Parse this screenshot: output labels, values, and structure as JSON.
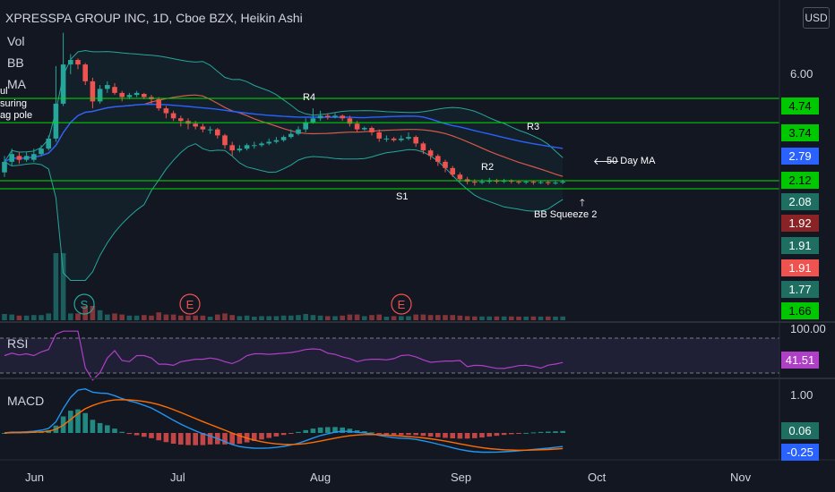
{
  "header": {
    "title": "XPRESSPA GROUP INC, 1D, Cboe BZX, Heikin Ashi",
    "indicators": [
      "Vol",
      "BB",
      "MA"
    ],
    "currency_button": "USD",
    "left_note_lines": [
      "ul",
      "suring",
      "ag pole"
    ]
  },
  "colors": {
    "background": "#131722",
    "bull": "#26a69a",
    "bear": "#ef5350",
    "bb_band": "#26a69a",
    "ma50": "#2962ff",
    "ma20": "#d65a4a",
    "hlines": "#00e000",
    "rsi": "#b03fc7",
    "macd": "#2196f3",
    "signal": "#ff6d00"
  },
  "price_axis": {
    "labels": [
      "6.00"
    ],
    "tags": [
      {
        "text": "4.74",
        "color": "#00c800",
        "text_color": "#000000"
      },
      {
        "text": "3.74",
        "color": "#00c800",
        "text_color": "#000000"
      },
      {
        "text": "2.79",
        "color": "#2962ff",
        "text_color": "#ffffff"
      },
      {
        "text": "2.12",
        "color": "#00c800",
        "text_color": "#000000"
      },
      {
        "text": "2.08",
        "color": "#1e6e62",
        "text_color": "#ffffff"
      },
      {
        "text": "1.92",
        "color": "#8a2325",
        "text_color": "#ffffff"
      },
      {
        "text": "1.91",
        "color": "#1e6e62",
        "text_color": "#ffffff"
      },
      {
        "text": "1.91",
        "color": "#ef5350",
        "text_color": "#ffffff"
      },
      {
        "text": "1.77",
        "color": "#1e6e62",
        "text_color": "#ffffff"
      },
      {
        "text": "1.66",
        "color": "#00c800",
        "text_color": "#000000"
      }
    ]
  },
  "annotations": {
    "r4": "R4",
    "r3": "R3",
    "r2": "R2",
    "s1": "S1",
    "ma50": "50 Day MA",
    "squeeze": "BB Squeeze 2"
  },
  "events": [
    "S",
    "E",
    "E"
  ],
  "rsi": {
    "label": "RSI",
    "top": "100.00",
    "value": "41.51"
  },
  "macd": {
    "label": "MACD",
    "top": "1.00",
    "value": "0.06",
    "signal_value": "-0.25"
  },
  "time_axis": [
    "Jun",
    "Jul",
    "Aug",
    "Sep",
    "Oct",
    "Nov"
  ],
  "chart_data": {
    "type": "candlestick",
    "title": "XPRESSPA GROUP INC, 1D, Cboe BZX, Heikin Ashi",
    "horizontal_levels": [
      4.74,
      3.74,
      2.12,
      1.66
    ],
    "price_scale": "log",
    "candles": [
      {
        "o": 2.3,
        "c": 2.55,
        "h": 2.7,
        "l": 2.2
      },
      {
        "o": 2.55,
        "c": 2.75,
        "h": 2.9,
        "l": 2.45
      },
      {
        "o": 2.7,
        "c": 2.6,
        "h": 2.8,
        "l": 2.5
      },
      {
        "o": 2.6,
        "c": 2.7,
        "h": 2.8,
        "l": 2.55
      },
      {
        "o": 2.6,
        "c": 2.75,
        "h": 2.9,
        "l": 2.55
      },
      {
        "o": 2.75,
        "c": 2.9,
        "h": 3.0,
        "l": 2.7
      },
      {
        "o": 2.9,
        "c": 3.2,
        "h": 3.3,
        "l": 2.85
      },
      {
        "o": 3.2,
        "c": 4.5,
        "h": 6.5,
        "l": 3.1
      },
      {
        "o": 4.5,
        "c": 6.6,
        "h": 9.0,
        "l": 4.4
      },
      {
        "o": 6.6,
        "c": 6.9,
        "h": 7.3,
        "l": 6.0
      },
      {
        "o": 6.9,
        "c": 6.6,
        "h": 7.0,
        "l": 6.3
      },
      {
        "o": 6.6,
        "c": 5.6,
        "h": 6.7,
        "l": 5.4
      },
      {
        "o": 5.6,
        "c": 4.6,
        "h": 5.8,
        "l": 4.3
      },
      {
        "o": 4.6,
        "c": 5.2,
        "h": 5.4,
        "l": 4.5
      },
      {
        "o": 5.2,
        "c": 5.4,
        "h": 5.6,
        "l": 5.0
      },
      {
        "o": 5.3,
        "c": 5.0,
        "h": 5.5,
        "l": 4.9
      },
      {
        "o": 5.0,
        "c": 4.8,
        "h": 5.1,
        "l": 4.6
      },
      {
        "o": 4.8,
        "c": 4.9,
        "h": 5.0,
        "l": 4.7
      },
      {
        "o": 4.9,
        "c": 5.0,
        "h": 5.1,
        "l": 4.8
      },
      {
        "o": 4.95,
        "c": 4.8,
        "h": 5.0,
        "l": 4.7
      },
      {
        "o": 4.8,
        "c": 4.7,
        "h": 4.9,
        "l": 4.5
      },
      {
        "o": 4.7,
        "c": 4.3,
        "h": 4.8,
        "l": 4.2
      },
      {
        "o": 4.3,
        "c": 4.1,
        "h": 4.4,
        "l": 3.9
      },
      {
        "o": 4.1,
        "c": 3.9,
        "h": 4.2,
        "l": 3.8
      },
      {
        "o": 3.9,
        "c": 3.8,
        "h": 4.0,
        "l": 3.6
      },
      {
        "o": 3.8,
        "c": 3.7,
        "h": 3.9,
        "l": 3.5
      },
      {
        "o": 3.7,
        "c": 3.6,
        "h": 3.8,
        "l": 3.5
      },
      {
        "o": 3.6,
        "c": 3.5,
        "h": 3.7,
        "l": 3.4
      },
      {
        "o": 3.5,
        "c": 3.5,
        "h": 3.6,
        "l": 3.35
      },
      {
        "o": 3.5,
        "c": 3.3,
        "h": 3.55,
        "l": 3.2
      },
      {
        "o": 3.3,
        "c": 3.0,
        "h": 3.35,
        "l": 2.9
      },
      {
        "o": 3.0,
        "c": 2.85,
        "h": 3.1,
        "l": 2.7
      },
      {
        "o": 2.85,
        "c": 2.9,
        "h": 3.0,
        "l": 2.8
      },
      {
        "o": 2.9,
        "c": 3.0,
        "h": 3.05,
        "l": 2.85
      },
      {
        "o": 3.0,
        "c": 3.0,
        "h": 3.1,
        "l": 2.9
      },
      {
        "o": 3.0,
        "c": 3.05,
        "h": 3.1,
        "l": 2.95
      },
      {
        "o": 3.05,
        "c": 3.1,
        "h": 3.2,
        "l": 3.0
      },
      {
        "o": 3.1,
        "c": 3.15,
        "h": 3.25,
        "l": 3.05
      },
      {
        "o": 3.15,
        "c": 3.25,
        "h": 3.3,
        "l": 3.1
      },
      {
        "o": 3.25,
        "c": 3.35,
        "h": 3.5,
        "l": 3.2
      },
      {
        "o": 3.35,
        "c": 3.5,
        "h": 3.6,
        "l": 3.3
      },
      {
        "o": 3.5,
        "c": 3.75,
        "h": 3.9,
        "l": 3.4
      },
      {
        "o": 3.75,
        "c": 3.9,
        "h": 4.3,
        "l": 3.7
      },
      {
        "o": 3.9,
        "c": 4.0,
        "h": 4.2,
        "l": 3.8
      },
      {
        "o": 4.0,
        "c": 3.95,
        "h": 4.1,
        "l": 3.85
      },
      {
        "o": 3.95,
        "c": 4.0,
        "h": 4.1,
        "l": 3.9
      },
      {
        "o": 4.0,
        "c": 3.9,
        "h": 4.05,
        "l": 3.8
      },
      {
        "o": 3.9,
        "c": 3.7,
        "h": 4.0,
        "l": 3.6
      },
      {
        "o": 3.7,
        "c": 3.5,
        "h": 3.8,
        "l": 3.4
      },
      {
        "o": 3.5,
        "c": 3.55,
        "h": 3.6,
        "l": 3.45
      },
      {
        "o": 3.55,
        "c": 3.4,
        "h": 3.6,
        "l": 3.3
      },
      {
        "o": 3.4,
        "c": 3.2,
        "h": 3.5,
        "l": 3.1
      },
      {
        "o": 3.2,
        "c": 3.2,
        "h": 3.3,
        "l": 3.1
      },
      {
        "o": 3.2,
        "c": 3.15,
        "h": 3.25,
        "l": 3.1
      },
      {
        "o": 3.15,
        "c": 3.2,
        "h": 3.3,
        "l": 3.1
      },
      {
        "o": 3.2,
        "c": 3.25,
        "h": 3.4,
        "l": 3.15
      },
      {
        "o": 3.25,
        "c": 3.05,
        "h": 3.3,
        "l": 2.95
      },
      {
        "o": 3.05,
        "c": 2.85,
        "h": 3.1,
        "l": 2.75
      },
      {
        "o": 2.85,
        "c": 2.7,
        "h": 2.9,
        "l": 2.6
      },
      {
        "o": 2.7,
        "c": 2.55,
        "h": 2.75,
        "l": 2.45
      },
      {
        "o": 2.55,
        "c": 2.4,
        "h": 2.6,
        "l": 2.3
      },
      {
        "o": 2.4,
        "c": 2.25,
        "h": 2.45,
        "l": 2.2
      },
      {
        "o": 2.25,
        "c": 2.15,
        "h": 2.3,
        "l": 2.1
      },
      {
        "o": 2.15,
        "c": 2.1,
        "h": 2.2,
        "l": 2.05
      },
      {
        "o": 2.1,
        "c": 2.08,
        "h": 2.15,
        "l": 2.02
      },
      {
        "o": 2.08,
        "c": 2.1,
        "h": 2.15,
        "l": 2.05
      },
      {
        "o": 2.1,
        "c": 2.12,
        "h": 2.18,
        "l": 2.06
      },
      {
        "o": 2.12,
        "c": 2.1,
        "h": 2.16,
        "l": 2.06
      },
      {
        "o": 2.1,
        "c": 2.12,
        "h": 2.16,
        "l": 2.07
      },
      {
        "o": 2.12,
        "c": 2.1,
        "h": 2.15,
        "l": 2.06
      },
      {
        "o": 2.1,
        "c": 2.09,
        "h": 2.13,
        "l": 2.05
      },
      {
        "o": 2.09,
        "c": 2.1,
        "h": 2.13,
        "l": 2.05
      },
      {
        "o": 2.1,
        "c": 2.08,
        "h": 2.12,
        "l": 2.04
      },
      {
        "o": 2.08,
        "c": 2.09,
        "h": 2.12,
        "l": 2.05
      },
      {
        "o": 2.09,
        "c": 2.07,
        "h": 2.11,
        "l": 2.03
      },
      {
        "o": 2.07,
        "c": 2.08,
        "h": 2.12,
        "l": 2.04
      },
      {
        "o": 2.08,
        "c": 2.1,
        "h": 2.14,
        "l": 2.05
      }
    ]
  }
}
